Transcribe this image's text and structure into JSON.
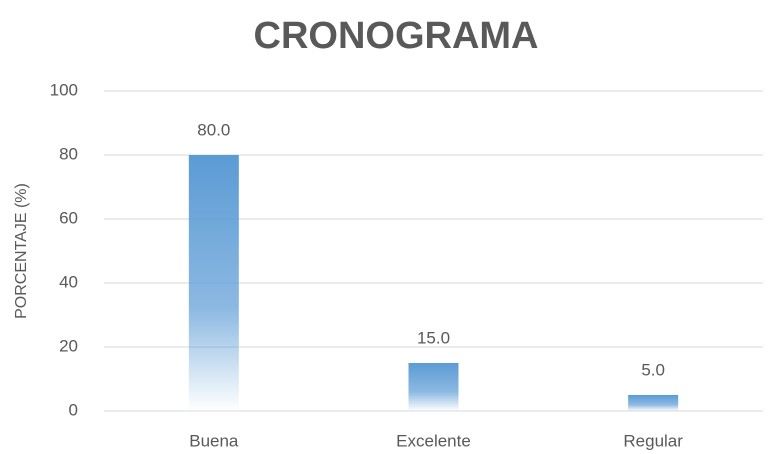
{
  "chart_data": {
    "type": "bar",
    "title": "CRONOGRAMA",
    "ylabel": "PORCENTAJE (%)",
    "categories": [
      "Buena",
      "Excelente",
      "Regular"
    ],
    "values": [
      80,
      15,
      5
    ],
    "value_labels": [
      "80.0",
      "15.0",
      "5.0"
    ],
    "color": "#5b9bd5",
    "ylim": [
      0,
      100
    ],
    "yticks": [
      0,
      20,
      40,
      60,
      80,
      100
    ],
    "grid": true
  }
}
